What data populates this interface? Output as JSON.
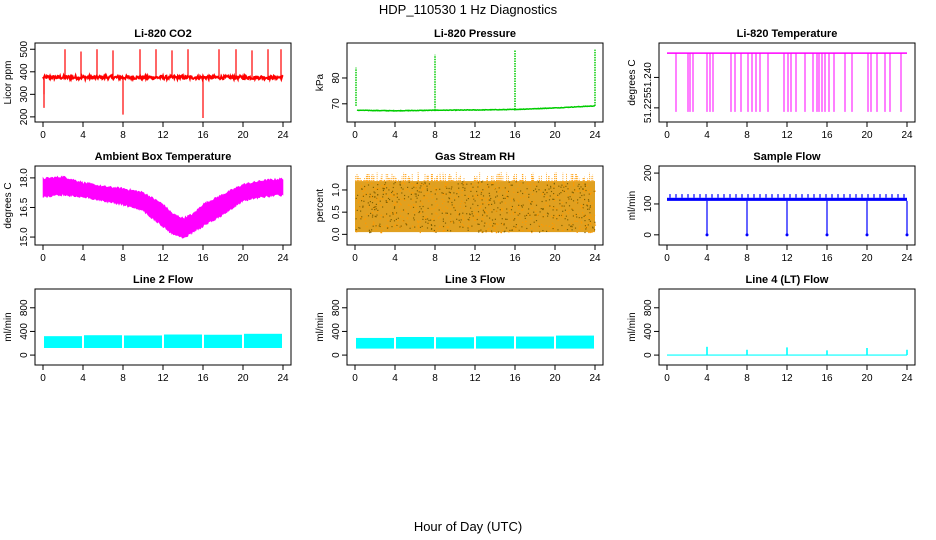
{
  "figure": {
    "title": "HDP_110530  1 Hz Diagnostics",
    "xlabel": "Hour of Day (UTC)"
  },
  "chart_data": [
    {
      "type": "line",
      "title": "Li-820 CO2",
      "ylabel": "Licor ppm",
      "color": "#ff0000",
      "xlim": [
        0,
        24
      ],
      "ylim": [
        195,
        510
      ],
      "xticks": [
        0,
        4,
        8,
        12,
        16,
        20,
        24
      ],
      "yticks": [
        200,
        300,
        400,
        500
      ],
      "ytick_labels": [
        "200",
        "300",
        "400",
        "500"
      ],
      "series": [
        {
          "name": "CO2",
          "baseline": 375,
          "noise": 8,
          "spikes": [
            [
              0.1,
              240
            ],
            [
              0.1,
              300
            ],
            [
              2.2,
              500
            ],
            [
              3.8,
              490
            ],
            [
              5.4,
              500
            ],
            [
              7.0,
              495
            ],
            [
              8.0,
              210
            ],
            [
              9.7,
              500
            ],
            [
              11.3,
              500
            ],
            [
              12.9,
              495
            ],
            [
              14.5,
              500
            ],
            [
              16.0,
              195
            ],
            [
              17.6,
              500
            ],
            [
              19.3,
              500
            ],
            [
              20.9,
              495
            ],
            [
              22.5,
              500
            ],
            [
              23.8,
              500
            ]
          ]
        }
      ]
    },
    {
      "type": "line",
      "title": "Li-820 Pressure",
      "ylabel": "kPa",
      "color": "#00cc00",
      "xlim": [
        0,
        24
      ],
      "ylim": [
        64.5,
        92
      ],
      "xticks": [
        0,
        4,
        8,
        12,
        16,
        20,
        24
      ],
      "yticks": [
        70,
        80
      ],
      "ytick_labels": [
        "70",
        "80"
      ],
      "series": [
        {
          "name": "Pressure",
          "points": [
            [
              0.2,
              67.5
            ],
            [
              4,
              67.3
            ],
            [
              8,
              67.5
            ],
            [
              12,
              67.6
            ],
            [
              16,
              67.8
            ],
            [
              20,
              68.4
            ],
            [
              24,
              69.2
            ]
          ],
          "noise": 0.2,
          "spikes": [
            [
              0.1,
              84
            ],
            [
              8.0,
              89
            ],
            [
              16.0,
              91
            ],
            [
              24.0,
              91
            ]
          ]
        }
      ]
    },
    {
      "type": "line",
      "title": "Li-820 Temperature",
      "ylabel": "degrees C",
      "color": "#ff00ff",
      "xlim": [
        0,
        24
      ],
      "ylim": [
        51.22,
        51.255
      ],
      "xticks": [
        0,
        4,
        8,
        12,
        16,
        20,
        24
      ],
      "yticks": [
        51.225,
        51.24
      ],
      "ytick_labels": [
        "51.225",
        "51.240"
      ],
      "series": [
        {
          "name": "Temperature",
          "baseline": 51.252,
          "low": 51.223,
          "drops": [
            0.9,
            2.1,
            2.3,
            2.6,
            4.0,
            4.3,
            4.6,
            6.4,
            6.8,
            7.4,
            8.1,
            8.5,
            8.9,
            9.3,
            10.1,
            11.7,
            12.1,
            12.4,
            12.9,
            13.8,
            14.6,
            15.0,
            15.2,
            15.5,
            15.8,
            16.2,
            16.7,
            17.8,
            18.5,
            20.1,
            20.4,
            21.0,
            21.8,
            22.3,
            23.4
          ]
        }
      ]
    },
    {
      "type": "area",
      "title": "Ambient Box Temperature",
      "ylabel": "degrees C",
      "color": "#ff00ff",
      "xlim": [
        0,
        24
      ],
      "ylim": [
        14.8,
        18.4
      ],
      "xticks": [
        0,
        4,
        8,
        12,
        16,
        20,
        24
      ],
      "yticks": [
        15.0,
        16.5,
        18.0
      ],
      "ytick_labels": [
        "15.0",
        "16.5",
        "18.0"
      ],
      "series": [
        {
          "name": "Ambient",
          "x": [
            0,
            2,
            4,
            6,
            8,
            10,
            12,
            13,
            14,
            15,
            16,
            18,
            20,
            22,
            24
          ],
          "hi": [
            17.9,
            18.0,
            17.7,
            17.5,
            17.4,
            17.2,
            16.6,
            16.1,
            15.9,
            16.1,
            16.6,
            17.1,
            17.6,
            17.8,
            17.9
          ],
          "lo": [
            17.1,
            17.2,
            17.1,
            16.9,
            16.7,
            16.4,
            15.6,
            15.2,
            15.0,
            15.3,
            15.6,
            16.2,
            16.9,
            17.1,
            17.2
          ]
        }
      ]
    },
    {
      "type": "scatter",
      "title": "Gas Stream RH",
      "ylabel": "percent",
      "color": "#ff9900",
      "xlim": [
        0,
        24
      ],
      "ylim": [
        -0.15,
        1.45
      ],
      "xticks": [
        0,
        4,
        8,
        12,
        16,
        20,
        24
      ],
      "yticks": [
        0.0,
        0.5,
        1.0
      ],
      "ytick_labels": [
        "0.0",
        "0.5",
        "1.0"
      ],
      "series": [
        {
          "name": "RH",
          "lo": 0.05,
          "hi": 1.2,
          "max": 1.4
        }
      ]
    },
    {
      "type": "line",
      "title": "Sample Flow",
      "ylabel": "ml/min",
      "color": "#0000ff",
      "xlim": [
        0,
        24
      ],
      "ylim": [
        -20,
        210
      ],
      "xticks": [
        0,
        4,
        8,
        12,
        16,
        20,
        24
      ],
      "yticks": [
        0,
        100,
        200
      ],
      "ytick_labels": [
        "0",
        "100",
        "200"
      ],
      "series": [
        {
          "name": "Flow",
          "high": 120,
          "low": 110,
          "dips": [
            4.0,
            8.0,
            12.0,
            16.0,
            20.0,
            24.0
          ],
          "dip_value": 0
        }
      ]
    },
    {
      "type": "area",
      "title": "Line 2 Flow",
      "ylabel": "ml/min",
      "color": "#00ffff",
      "xlim": [
        0,
        24
      ],
      "ylim": [
        -100,
        1050
      ],
      "xticks": [
        0,
        4,
        8,
        12,
        16,
        20,
        24
      ],
      "yticks": [
        0,
        400,
        800
      ],
      "ytick_labels": [
        "0",
        "400",
        "800"
      ],
      "series": [
        {
          "name": "Line2",
          "lo": 120,
          "hi": 320,
          "segments": [
            [
              0,
              4
            ],
            [
              4,
              8
            ],
            [
              8,
              12
            ],
            [
              12,
              16
            ],
            [
              16,
              20
            ],
            [
              20,
              24
            ]
          ]
        }
      ]
    },
    {
      "type": "area",
      "title": "Line 3 Flow",
      "ylabel": "ml/min",
      "color": "#00ffff",
      "xlim": [
        0,
        24
      ],
      "ylim": [
        -100,
        1050
      ],
      "xticks": [
        0,
        4,
        8,
        12,
        16,
        20,
        24
      ],
      "yticks": [
        0,
        400,
        800
      ],
      "ytick_labels": [
        "0",
        "400",
        "800"
      ],
      "series": [
        {
          "name": "Line3",
          "lo": 110,
          "hi": 290,
          "segments": [
            [
              0,
              4
            ],
            [
              4,
              8
            ],
            [
              8,
              12
            ],
            [
              12,
              16
            ],
            [
              16,
              20
            ],
            [
              20,
              24
            ]
          ]
        }
      ]
    },
    {
      "type": "line",
      "title": "Line 4 (LT) Flow",
      "ylabel": "ml/min",
      "color": "#00ffff",
      "xlim": [
        0,
        24
      ],
      "ylim": [
        -100,
        1050
      ],
      "xticks": [
        0,
        4,
        8,
        12,
        16,
        20,
        24
      ],
      "yticks": [
        0,
        400,
        800
      ],
      "ytick_labels": [
        "0",
        "400",
        "800"
      ],
      "series": [
        {
          "name": "Line4",
          "baseline": 0,
          "spikes": [
            [
              4.0,
              140
            ],
            [
              8.0,
              90
            ],
            [
              12.0,
              130
            ],
            [
              16.0,
              80
            ],
            [
              20.0,
              120
            ],
            [
              24.0,
              90
            ]
          ]
        }
      ]
    }
  ]
}
